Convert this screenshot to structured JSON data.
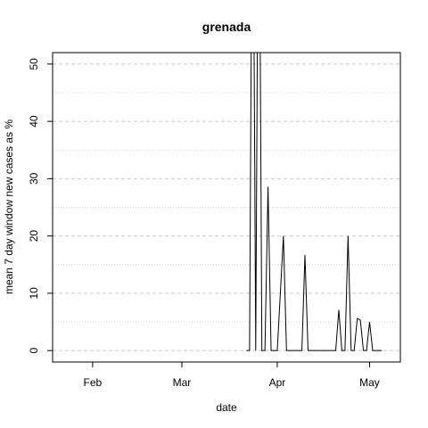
{
  "chart_data": {
    "type": "line",
    "title": "grenada",
    "xlabel": "date",
    "ylabel": "mean  7  day window new cases as %",
    "x_ticks": [
      {
        "label": "Feb",
        "date": "2020-02-01"
      },
      {
        "label": "Mar",
        "date": "2020-03-01"
      },
      {
        "label": "Apr",
        "date": "2020-04-01"
      },
      {
        "label": "May",
        "date": "2020-05-01"
      }
    ],
    "y_ticks": [
      0,
      10,
      20,
      30,
      40,
      50
    ],
    "xlim": [
      "2020-01-19",
      "2020-05-11"
    ],
    "ylim": [
      -2,
      52
    ],
    "grid": true,
    "series": [
      {
        "color": "#000000",
        "x": [
          "2020-03-22",
          "2020-03-23",
          "2020-03-24",
          "2020-03-25",
          "2020-03-26",
          "2020-03-27",
          "2020-03-28",
          "2020-03-29",
          "2020-03-30",
          "2020-03-31",
          "2020-04-01",
          "2020-04-02",
          "2020-04-03",
          "2020-04-04",
          "2020-04-05",
          "2020-04-06",
          "2020-04-07",
          "2020-04-08",
          "2020-04-09",
          "2020-04-10",
          "2020-04-11",
          "2020-04-12",
          "2020-04-13",
          "2020-04-14",
          "2020-04-15",
          "2020-04-16",
          "2020-04-17",
          "2020-04-18",
          "2020-04-19",
          "2020-04-20",
          "2020-04-21",
          "2020-04-22",
          "2020-04-23",
          "2020-04-24",
          "2020-04-25",
          "2020-04-26",
          "2020-04-27",
          "2020-04-28",
          "2020-04-29",
          "2020-04-30",
          "2020-05-01",
          "2020-05-02",
          "2020-05-03",
          "2020-05-04",
          "2020-05-05"
        ],
        "y": [
          0,
          0,
          100,
          0,
          100,
          0,
          0,
          28.6,
          0,
          0,
          0,
          10,
          20,
          0,
          0,
          0,
          0,
          0,
          0,
          16.7,
          0,
          0,
          0,
          0,
          0,
          0,
          0,
          0,
          0,
          0,
          7.1,
          0,
          0,
          20,
          0,
          0,
          5.6,
          5.3,
          0,
          0,
          5,
          0,
          0,
          0,
          0
        ]
      }
    ]
  }
}
